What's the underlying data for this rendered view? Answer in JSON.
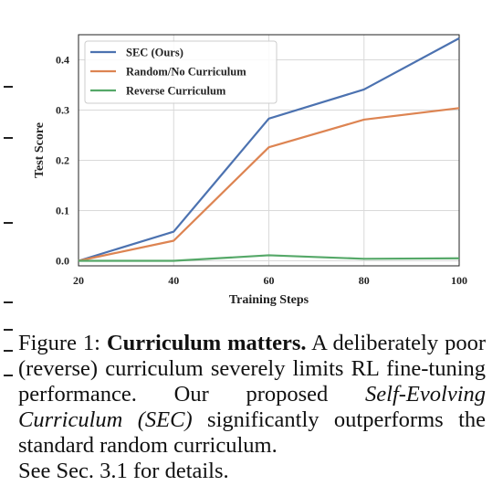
{
  "figure_number": "Figure 1:",
  "caption": {
    "bold": "Curriculum matters.",
    "text1": "A deliberately poor (reverse) curriculum severely limits RL fine-tuning performance. Our proposed",
    "italic": "Self-Evolving Curriculum (SEC)",
    "text2": "significantly outperforms the standard random curriculum.",
    "tail": "See Sec. 3.1 for details."
  },
  "chart_data": {
    "type": "line",
    "xlabel": "Training Steps",
    "ylabel": "Test Score",
    "x": [
      20,
      40,
      60,
      80,
      100
    ],
    "xlim": [
      20,
      100
    ],
    "ylim": [
      -0.01,
      0.45
    ],
    "xticks": [
      "20",
      "40",
      "60",
      "80",
      "100"
    ],
    "yticks": [
      "0.0",
      "0.1",
      "0.2",
      "0.3",
      "0.4"
    ],
    "ytick_values": [
      0.0,
      0.1,
      0.2,
      0.3,
      0.4
    ],
    "grid": true,
    "legend_position": "top-left",
    "series": [
      {
        "name": "SEC (Ours)",
        "color": "#4c72b0",
        "values": [
          0.0,
          0.058,
          0.283,
          0.341,
          0.443
        ]
      },
      {
        "name": "Random/No Curriculum",
        "color": "#dd8452",
        "values": [
          0.0,
          0.04,
          0.226,
          0.281,
          0.304
        ]
      },
      {
        "name": "Reverse Curriculum",
        "color": "#55a868",
        "values": [
          0.0,
          0.0,
          0.011,
          0.004,
          0.005
        ]
      }
    ]
  }
}
